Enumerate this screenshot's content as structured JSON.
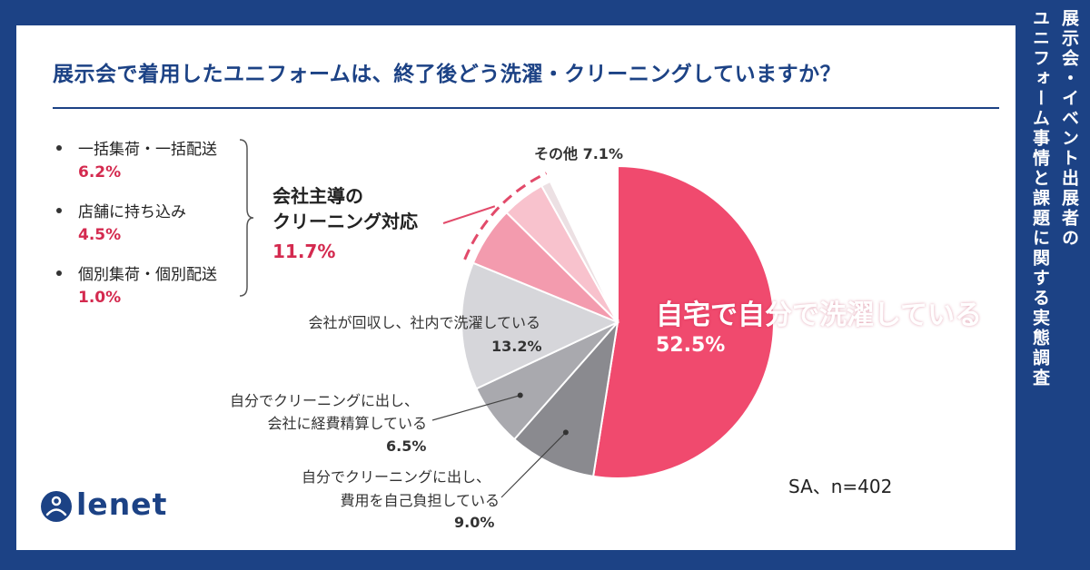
{
  "title": "展示会で着用したユニフォームは、終了後どう洗濯・クリーニングしていますか？",
  "side_title": {
    "line1": "展示会・イベント出展者の",
    "line2": "ユニフォーム事情と課題に関する実態調査"
  },
  "group": {
    "name_line1": "会社主導の",
    "name_line2": "クリーニング対応",
    "value": "11.7%",
    "items": [
      {
        "label": "一括集荷・一括配送",
        "value": "6.2%"
      },
      {
        "label": "店舗に持ち込み",
        "value": "4.5%"
      },
      {
        "label": "個別集荷・個別配送",
        "value": "1.0%"
      }
    ]
  },
  "labels": {
    "self_wash": "自宅で自分で洗濯している",
    "self_wash_value": "52.5%",
    "company_collect": "会社が回収し、社内で洗濯している",
    "company_collect_value": "13.2%",
    "expense_l1": "自分でクリーニングに出し、",
    "expense_l2": "会社に経費精算している",
    "expense_value": "6.5%",
    "self_pay_l1": "自分でクリーニングに出し、",
    "self_pay_l2": "費用を自己負担している",
    "self_pay_value": "9.0%",
    "other": "その他",
    "other_value": "7.1%"
  },
  "sample_note": "SA、n=402",
  "logo_text": "lenet",
  "colors": {
    "navy": "#1c4285",
    "accent_red": "#d42a4f",
    "pink": "#f04a6e"
  },
  "chart_data": {
    "type": "pie",
    "start": "12 o'clock, clockwise",
    "slices": [
      {
        "label": "自宅で自分で洗濯している",
        "value": 52.5,
        "color": "#f04a6e"
      },
      {
        "label": "自分でクリーニングに出し、費用を自己負担している",
        "value": 9.0,
        "color": "#8a8a8f"
      },
      {
        "label": "自分でクリーニングに出し、会社に経費精算している",
        "value": 6.5,
        "color": "#a9a9ae"
      },
      {
        "label": "会社が回収し、社内で洗濯している",
        "value": 13.2,
        "color": "#d6d6da"
      },
      {
        "label": "一括集荷・一括配送",
        "value": 6.2,
        "color": "#f39bae"
      },
      {
        "label": "店舗に持ち込み",
        "value": 4.5,
        "color": "#f8c2cd"
      },
      {
        "label": "個別集荷・個別配送",
        "value": 1.0,
        "color": "#ece0e3"
      },
      {
        "label": "その他",
        "value": 7.1,
        "color": "#ffffff"
      }
    ]
  }
}
